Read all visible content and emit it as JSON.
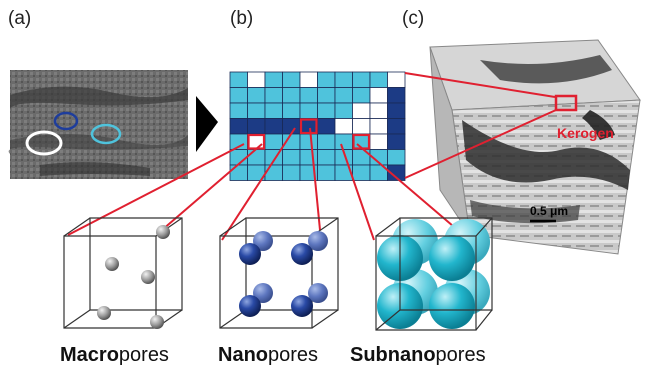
{
  "panels": {
    "a": "(a)",
    "b": "(b)",
    "c": "(c)"
  },
  "annotations": {
    "kerogen": "Kerogen",
    "scale_bar": "0.5 μm"
  },
  "captions": {
    "macro": {
      "bold": "Macro",
      "regular": "pores"
    },
    "nano": {
      "bold": "Nano",
      "regular": "pores"
    },
    "subnano": {
      "bold": "Subnano",
      "regular": "pores"
    }
  },
  "grid": {
    "rows": 7,
    "cols": 10,
    "cells": [
      "LWLLWLLLLW",
      "LLLLLLLLWD",
      "LLLLLLLWWD",
      "DDDDDDWWWD",
      "LWLLLLLLWD",
      "LLLLLLLLLL",
      "LLLLLLLLLD"
    ],
    "highlighted_cells": [
      {
        "row": 4,
        "col": 1
      },
      {
        "row": 3,
        "col": 4
      },
      {
        "row": 4,
        "col": 7
      }
    ]
  },
  "colors": {
    "light_cell": "#4fc3dc",
    "dark_cell": "#1c3b85",
    "white_cell": "#ffffff",
    "highlight": "#e02030",
    "kerogen_text": "#e02030",
    "macro_sphere": "#9a9a9a",
    "nano_sphere": "#1e3d8f",
    "subnano_sphere": "#1fb8cf"
  }
}
